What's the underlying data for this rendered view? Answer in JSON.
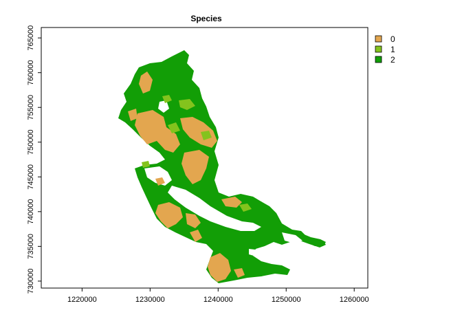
{
  "map": {
    "title": "Species",
    "x_axis": {
      "range": [
        1214000,
        1262000
      ],
      "ticks": [
        {
          "value": 1220000,
          "label": "1220000"
        },
        {
          "value": 1230000,
          "label": "1230000"
        },
        {
          "value": 1240000,
          "label": "1240000"
        },
        {
          "value": 1250000,
          "label": "1250000"
        },
        {
          "value": 1260000,
          "label": "1260000"
        }
      ]
    },
    "y_axis": {
      "range": [
        729000,
        766500
      ],
      "ticks": [
        {
          "value": 730000,
          "label": "730000"
        },
        {
          "value": 735000,
          "label": "735000"
        },
        {
          "value": 740000,
          "label": "740000"
        },
        {
          "value": 745000,
          "label": "745000"
        },
        {
          "value": 750000,
          "label": "750000"
        },
        {
          "value": 755000,
          "label": "755000"
        },
        {
          "value": 760000,
          "label": "760000"
        },
        {
          "value": 765000,
          "label": "765000"
        }
      ]
    },
    "legend": {
      "placement": "right",
      "items": [
        {
          "label": "0",
          "color": "#E3A64F"
        },
        {
          "label": "1",
          "color": "#84C31D"
        },
        {
          "label": "2",
          "color": "#129E06"
        }
      ]
    }
  }
}
